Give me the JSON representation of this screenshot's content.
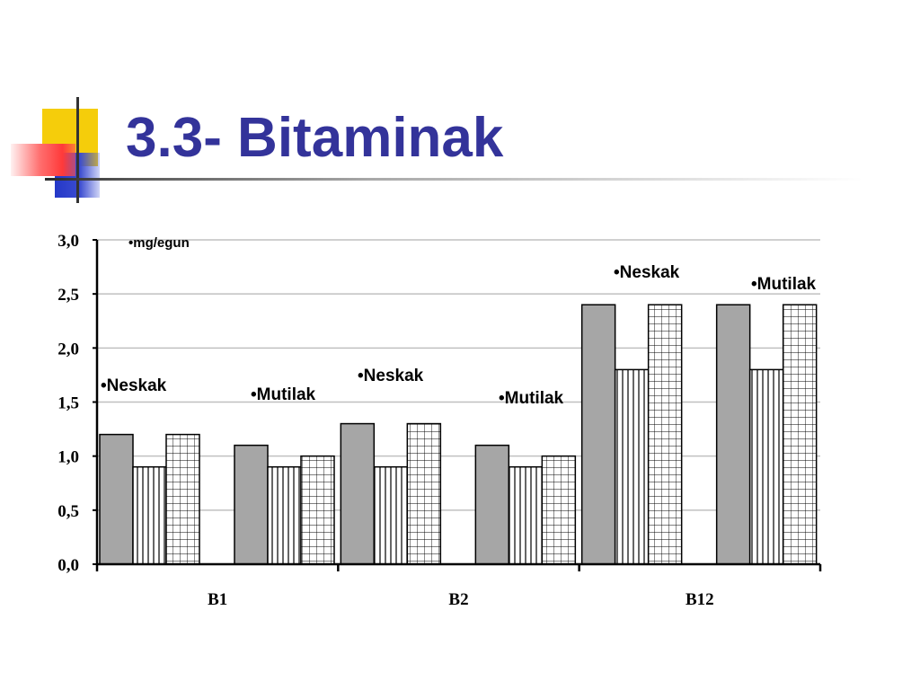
{
  "slide": {
    "title": "3.3- Bitaminak"
  },
  "chart_data": {
    "type": "bar",
    "title": "",
    "unit_label": "•mg/egun",
    "xlabel": "",
    "ylabel": "",
    "ylim": [
      0,
      3
    ],
    "yticks": [
      "0,0",
      "0,5",
      "1,0",
      "1,5",
      "2,0",
      "2,5",
      "3,0"
    ],
    "grid": true,
    "categories": [
      "B1",
      "B2",
      "B12"
    ],
    "groups": [
      {
        "category": "B1",
        "subgroup": "Neskak",
        "values": [
          1.2,
          0.9,
          1.2
        ]
      },
      {
        "category": "B1",
        "subgroup": "Mutilak",
        "values": [
          1.1,
          0.9,
          1.0
        ]
      },
      {
        "category": "B2",
        "subgroup": "Neskak",
        "values": [
          1.3,
          0.9,
          1.3
        ]
      },
      {
        "category": "B2",
        "subgroup": "Mutilak",
        "values": [
          1.1,
          0.9,
          1.0
        ]
      },
      {
        "category": "B12",
        "subgroup": "Neskak",
        "values": [
          2.4,
          1.8,
          2.4
        ]
      },
      {
        "category": "B12",
        "subgroup": "Mutilak",
        "values": [
          2.4,
          1.8,
          2.4
        ]
      }
    ],
    "annotations": [
      "•Neskak",
      "•Mutilak",
      "•Neskak",
      "•Mutilak",
      "•Neskak",
      "•Mutilak"
    ],
    "bar_styles": [
      "solid-gray",
      "vertical-stripes",
      "grid-pattern"
    ],
    "colors": {
      "gray": "#a6a6a6",
      "outline": "#000000",
      "gridline": "#c0c0c0"
    }
  }
}
